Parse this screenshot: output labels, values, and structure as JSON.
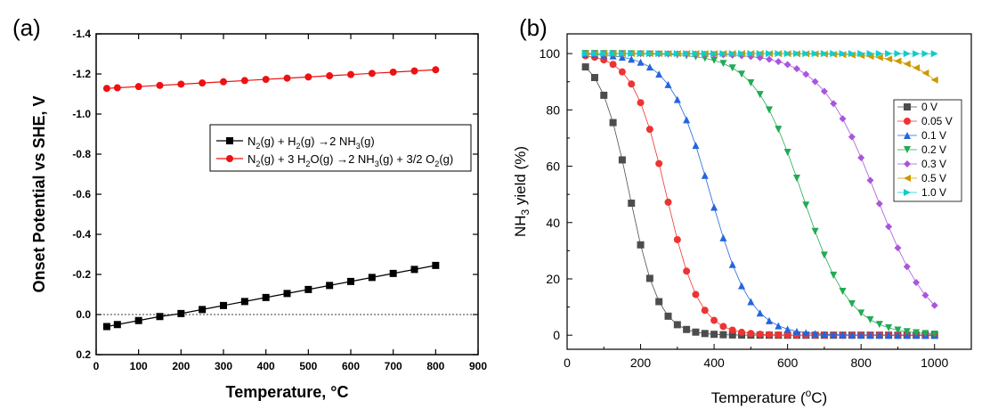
{
  "chart_data": [
    {
      "panel_label": "(a)",
      "type": "line",
      "xlabel": "Temperature, °C",
      "ylabel": "Onset Potential vs SHE, V",
      "xlim": [
        0,
        900
      ],
      "ylim": [
        0.2,
        -1.4
      ],
      "y_inverted": true,
      "xticks": [
        0,
        100,
        200,
        300,
        400,
        500,
        600,
        700,
        800,
        900
      ],
      "xtick_labels": [
        "0",
        "100",
        "200",
        "300",
        "400",
        "500",
        "600",
        "700",
        "800",
        "900"
      ],
      "yticks": [
        0.2,
        0.0,
        -0.2,
        -0.4,
        -0.6,
        -0.8,
        -1.0,
        -1.2,
        -1.4
      ],
      "ytick_labels": [
        "0.2",
        "0.0",
        "-0.2",
        "-0.4",
        "-0.6",
        "-0.8",
        "-1.0",
        "-1.2",
        "-1.4"
      ],
      "reference_line": {
        "y": 0.0,
        "style": "dotted"
      },
      "legend_position": "center-right",
      "series": [
        {
          "name": "N2(g) + H2(g) → 2 NH3(g)",
          "legend_parts": [
            [
              "N",
              ""
            ],
            [
              "2",
              "sub"
            ],
            [
              "(g) + H",
              ""
            ],
            [
              "2",
              "sub"
            ],
            [
              "(g) ",
              ""
            ],
            [
              "→",
              ""
            ],
            [
              "2 NH",
              ""
            ],
            [
              "3",
              "sub"
            ],
            [
              "(g)",
              ""
            ]
          ],
          "color": "#000000",
          "marker": "square",
          "x": [
            25,
            50,
            100,
            150,
            200,
            250,
            300,
            350,
            400,
            450,
            500,
            550,
            600,
            650,
            700,
            750,
            800
          ],
          "y": [
            0.06,
            0.05,
            0.03,
            0.01,
            -0.005,
            -0.025,
            -0.045,
            -0.065,
            -0.085,
            -0.105,
            -0.125,
            -0.145,
            -0.165,
            -0.185,
            -0.205,
            -0.225,
            -0.245
          ]
        },
        {
          "name": "N2(g) + 3 H2O(g) → 2 NH3(g) + 3/2 O2(g)",
          "legend_parts": [
            [
              "N",
              ""
            ],
            [
              "2",
              "sub"
            ],
            [
              "(g) + 3 H",
              ""
            ],
            [
              "2",
              "sub"
            ],
            [
              "O(g) ",
              ""
            ],
            [
              "→",
              ""
            ],
            [
              "2 NH",
              ""
            ],
            [
              "3",
              "sub"
            ],
            [
              "(g) + 3/2 O",
              ""
            ],
            [
              "2",
              "sub"
            ],
            [
              "(g)",
              ""
            ]
          ],
          "color": "#ee1111",
          "marker": "circle",
          "x": [
            25,
            50,
            100,
            150,
            200,
            250,
            300,
            350,
            400,
            450,
            500,
            550,
            600,
            650,
            700,
            750,
            800
          ],
          "y": [
            -1.128,
            -1.131,
            -1.137,
            -1.143,
            -1.149,
            -1.155,
            -1.161,
            -1.167,
            -1.173,
            -1.179,
            -1.185,
            -1.191,
            -1.197,
            -1.203,
            -1.209,
            -1.215,
            -1.221
          ]
        }
      ]
    },
    {
      "panel_label": "(b)",
      "type": "line",
      "xlabel_parts": [
        [
          "Temperature (",
          ""
        ],
        [
          "o",
          "sup"
        ],
        [
          "C)",
          ""
        ]
      ],
      "ylabel_parts": [
        [
          "NH",
          ""
        ],
        [
          "3",
          "sub"
        ],
        [
          " yield (%)",
          ""
        ]
      ],
      "xlim": [
        0,
        1100
      ],
      "ylim": [
        -5,
        107
      ],
      "xticks": [
        0,
        200,
        400,
        600,
        800,
        1000
      ],
      "xtick_labels": [
        "0",
        "200",
        "400",
        "600",
        "800",
        "1000"
      ],
      "yticks": [
        0,
        20,
        40,
        60,
        80,
        100
      ],
      "ytick_labels": [
        "0",
        "20",
        "40",
        "60",
        "80",
        "100"
      ],
      "legend_position": "top-right",
      "x_start": 50,
      "x_end": 1000,
      "x_step": 25,
      "series": [
        {
          "name": "0 V",
          "color": "#4d4d4d",
          "marker": "square",
          "midpoint_temp": 170,
          "width_temp": 40,
          "max_yield": 100.0
        },
        {
          "name": "0.05 V",
          "color": "#ee3333",
          "marker": "circle",
          "midpoint_temp": 270,
          "width_temp": 45,
          "max_yield": 100.0
        },
        {
          "name": "0.1 V",
          "color": "#2266dd",
          "marker": "triangle-up",
          "midpoint_temp": 390,
          "width_temp": 55,
          "max_yield": 100.0
        },
        {
          "name": "0.2 V",
          "color": "#22aa55",
          "marker": "triangle-down",
          "midpoint_temp": 640,
          "width_temp": 65,
          "max_yield": 100.0
        },
        {
          "name": "0.3 V",
          "color": "#aa55dd",
          "marker": "diamond",
          "midpoint_temp": 840,
          "width_temp": 75,
          "max_yield": 100.0
        },
        {
          "name": "0.5 V",
          "color": "#cc9900",
          "marker": "triangle-left",
          "midpoint_temp": 1170,
          "width_temp": 75,
          "max_yield": 100.0
        },
        {
          "name": "1.0 V",
          "color": "#11cccc",
          "marker": "triangle-right",
          "midpoint_temp": 1600,
          "width_temp": 80,
          "max_yield": 100.0
        }
      ]
    }
  ]
}
